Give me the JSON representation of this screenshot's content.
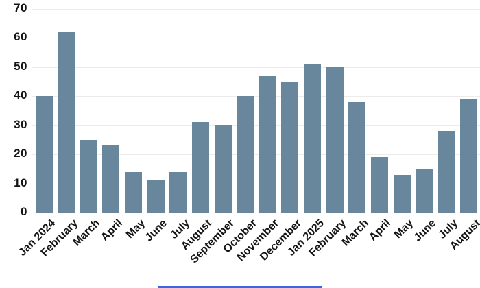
{
  "chart_data": {
    "type": "bar",
    "title": "",
    "xlabel": "",
    "ylabel": "",
    "categories": [
      "Jan 2024",
      "February",
      "March",
      "April",
      "May",
      "June",
      "July",
      "August",
      "September",
      "October",
      "November",
      "December",
      "Jan 2025",
      "February",
      "March",
      "April",
      "May",
      "June",
      "July",
      "August"
    ],
    "values": [
      40,
      62,
      25,
      23,
      14,
      11,
      14,
      31,
      30,
      40,
      47,
      45,
      51,
      50,
      38,
      19,
      13,
      15,
      28,
      39
    ],
    "ylim": [
      0,
      70
    ],
    "yticks": [
      0,
      10,
      20,
      30,
      40,
      50,
      60,
      70
    ],
    "grid": true,
    "legend": "none",
    "x_label_rotation_deg": -45,
    "bar_color": "#68879C",
    "gridline_color": "#ebebeb",
    "label_color": "#141414"
  },
  "bottom_partial_element": {
    "color": "#3D64E6"
  }
}
